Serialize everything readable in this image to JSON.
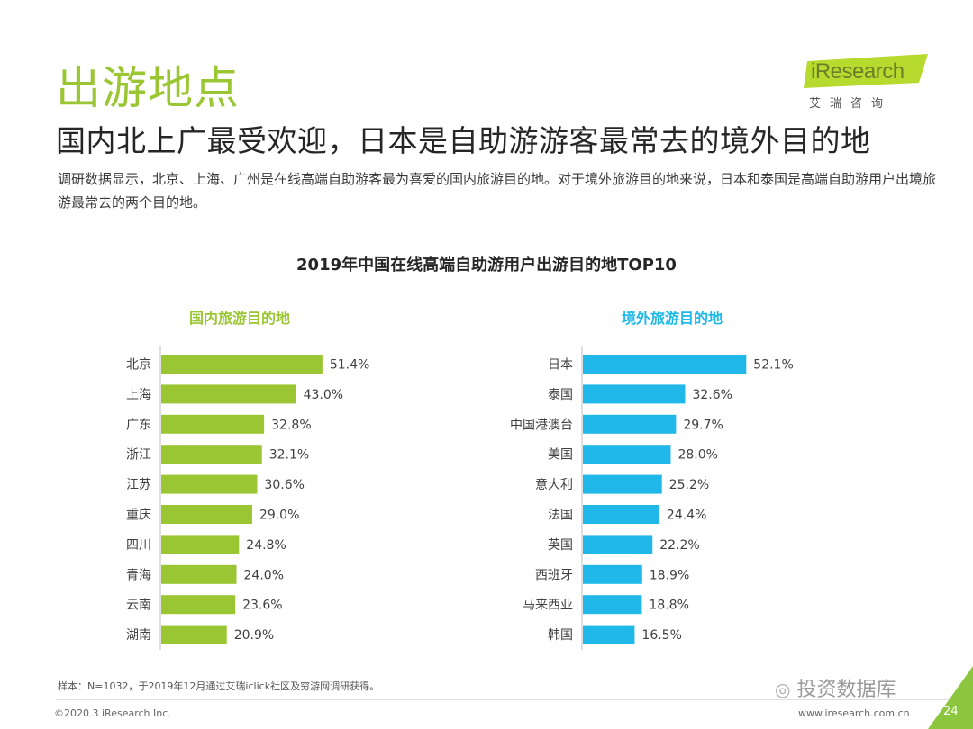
{
  "header": {
    "section_title": "出游地点",
    "headline": "国内北上广最受欢迎，日本是自助游游客最常去的境外目的地",
    "intro": "调研数据显示，北京、上海、广州是在线高端自助游客最为喜爱的国内旅游目的地。对于境外旅游目的地来说，日本和泰国是高端自助游用户出境旅游最常去的两个目的地。"
  },
  "logo": {
    "name": "iResearch",
    "sub": "艾瑞咨询"
  },
  "chart_data": [
    {
      "type": "bar",
      "orientation": "horizontal",
      "title": "2019年中国在线高端自助游用户出游目的地TOP10",
      "subtitle": "国内旅游目的地",
      "color": "#9BC634",
      "categories": [
        "北京",
        "上海",
        "广东",
        "浙江",
        "江苏",
        "重庆",
        "四川",
        "青海",
        "云南",
        "湖南"
      ],
      "values": [
        51.4,
        43.0,
        32.8,
        32.1,
        30.6,
        29.0,
        24.8,
        24.0,
        23.6,
        20.9
      ],
      "labels": [
        "51.4%",
        "43.0%",
        "32.8%",
        "32.1%",
        "30.6%",
        "29.0%",
        "24.8%",
        "24.0%",
        "23.6%",
        "20.9%"
      ],
      "unit": "%",
      "xlim": [
        0,
        60
      ]
    },
    {
      "type": "bar",
      "orientation": "horizontal",
      "title": "2019年中国在线高端自助游用户出游目的地TOP10",
      "subtitle": "境外旅游目的地",
      "color": "#1FB8E8",
      "categories": [
        "日本",
        "泰国",
        "中国港澳台",
        "美国",
        "意大利",
        "法国",
        "英国",
        "西班牙",
        "马来西亚",
        "韩国"
      ],
      "values": [
        52.1,
        32.6,
        29.7,
        28.0,
        25.2,
        24.4,
        22.2,
        18.9,
        18.8,
        16.5
      ],
      "labels": [
        "52.1%",
        "32.6%",
        "29.7%",
        "28.0%",
        "25.2%",
        "24.4%",
        "22.2%",
        "18.9%",
        "18.8%",
        "16.5%"
      ],
      "unit": "%",
      "xlim": [
        0,
        60
      ]
    }
  ],
  "footer": {
    "note": "样本：N=1032，于2019年12月通过艾瑞iclick社区及穷游网调研获得。",
    "copyright": "©2020.3 iResearch Inc.",
    "website": "www.iresearch.com.cn",
    "page": "24",
    "watermark": "投资数据库"
  }
}
